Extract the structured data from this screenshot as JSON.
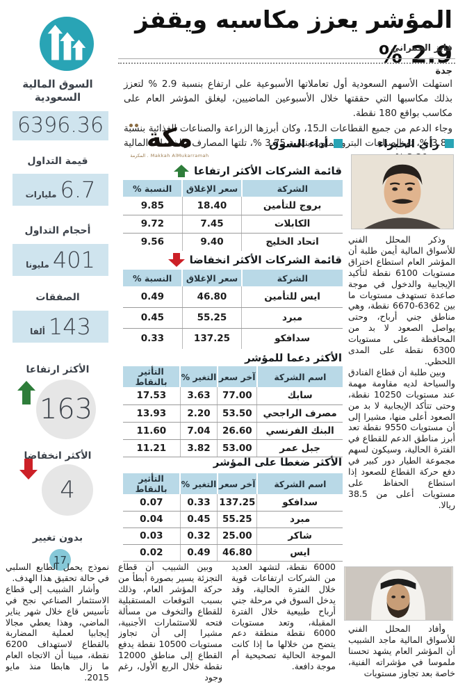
{
  "page": {
    "headline": "المؤشر يعزز مكاسبه ويقفز 2.9 %",
    "byline": "فايز الحمراني",
    "dateline": "جدة",
    "intro_p1": "استهلت الأسهم السعودية أول تعاملاتها الأسبوعية على ارتفاع بنسبة 2.9 % لتعزز بذلك مكاسبها التي حققتها خلال الأسبوعين الماضيين، ليغلق المؤشر العام على مكاسب بواقع 180 نقطة.",
    "intro_p2": "وجاء الدعم من جميع القطاعات الـ15، وكان أبرزها الزراعة والصناعات الغذائية بنسبة 3.88 %، ثم الصناعات البتروكيماوية بنسبة 3.75 %، تلتها المصارف والخدمات المالية بنسبة 3.20 %."
  },
  "logo": {
    "word": "مكة",
    "tagline": "Makkah AlMukarramah . المكرمة"
  },
  "sections": {
    "experts": "رأي الخبراء",
    "market": "أداء السوق"
  },
  "sidebar": {
    "market_label": "السوق المالية السعودية",
    "market_value": "6396.36",
    "stats": [
      {
        "label": "قيمة التداول",
        "value": "6.7",
        "unit": "مليارات"
      },
      {
        "label": "أحجام التداول",
        "value": "401",
        "unit": "مليونا"
      },
      {
        "label": "الصفقات",
        "value": "143",
        "unit": "ألفا"
      }
    ],
    "gainers_label": "الأكثر ارتفاعا",
    "gainers_count": "163",
    "losers_label": "الأكثر انخفاضا",
    "losers_count": "4",
    "unchanged_label": "بدون تغيير",
    "unchanged_count": "17"
  },
  "tables": {
    "top_gainers": {
      "title": "قائمة الشركات الأكثر ارتفاعا",
      "headers": [
        "الشركة",
        "سعر الإغلاق",
        "النسبة %"
      ],
      "rows": [
        [
          "بروج للتأمين",
          "18.40",
          "9.85"
        ],
        [
          "الكابلات",
          "7.45",
          "9.72"
        ],
        [
          "اتحاد الخليج",
          "9.40",
          "9.56"
        ]
      ]
    },
    "top_losers": {
      "title": "قائمة الشركات الأكثر انخفاضا",
      "headers": [
        "الشركة",
        "سعر الإغلاق",
        "النسبة %"
      ],
      "rows": [
        [
          "ايس للتأمين",
          "46.80",
          "0.49"
        ],
        [
          "مبرد",
          "55.25",
          "0.45"
        ],
        [
          "سدافكو",
          "137.25",
          "0.33"
        ]
      ]
    },
    "index_support": {
      "title": "الأكثر دعما للمؤشر",
      "headers": [
        "اسم الشركة",
        "آخر سعر",
        "التغير %",
        "التأثير بالنقاط"
      ],
      "rows": [
        [
          "سابك",
          "77.00",
          "3.63",
          "17.53"
        ],
        [
          "مصرف الراجحي",
          "53.50",
          "2.20",
          "13.93"
        ],
        [
          "البنك الفرنسي",
          "26.60",
          "7.04",
          "11.60"
        ],
        [
          "جبل عمر",
          "53.00",
          "3.82",
          "11.21"
        ]
      ]
    },
    "index_pressure": {
      "title": "الأكثر ضغطا على المؤشر",
      "headers": [
        "اسم الشركة",
        "آخر سعر",
        "التغير %",
        "التأثير بالنقاط"
      ],
      "rows": [
        [
          "سدافكو",
          "137.25",
          "0.33",
          "0.07"
        ],
        [
          "مبرد",
          "55.25",
          "0.45",
          "0.04"
        ],
        [
          "شاكر",
          "25.00",
          "0.32",
          "0.03"
        ],
        [
          "ايس",
          "46.80",
          "0.49",
          "0.02"
        ]
      ]
    }
  },
  "expert1": {
    "p1": "وذكر المحلل الفني للأسواق المالية أيمن طلبة أن المؤشر العام استطاع اختراق مستويات 6100 نقطة لتأكيد الإيجابية والدخول في موجة صاعدة تستهدف مستويات ما بين 6362-6670 نقطة، وهي مناطق جني أرباح، وحتى يواصل الصعود لا بد من المحافظة على مستويات 6300 نقطة على المدى اللحظي.",
    "p2": "وبين طلبة أن قطاع الفنادق والسياحة لديه مقاومة مهمة عند مستويات 10250 نقطة، وحتى تتأكد الإيجابية لا بد من الصعود أعلى منها، مشيرا إلى أن مستويات 9550 نقطة تعد أبرز مناطق الدعم للقطاع في الفترة الحالية، وسيكون لسهم مجموعة الطيار دور كبير في دفع حركة القطاع للصعود إذا استطاع الحفاظ على مستويات أعلى من 38.5 ريالا."
  },
  "expert2": {
    "p1": "وأفاد المحلل الفني للأسواق المالية ماجد الشبيب أن المؤشر العام يشهد تحسنا ملموسا في مؤشراته الفنية، خاصة بعد تجاوز مستويات",
    "col3": "6000 نقطة، لتشهد العديد من الشركات ارتفاعات قوية خلال الفترة الحالية، وقد يدخل السوق في مرحلة جني أرباح طبيعية خلال الفترة المقبلة، وتعد مستويات 6000 نقطة منطقة دعم يتضح من خلالها ما إذا كانت الموجة الحالية تصحيحية أم موجة دافعة.",
    "col2": "وبين الشبيب أن قطاع التجزئة يسير بصورة أبطأ من حركة المؤشر العام، وذلك بسبب التوقعات المستقبلية للقطاع والتخوف من مسألة فتحه للاستثمارات الأجنبية، مشيرا إلى أن تجاوز مستويات 10500 نقطة يدفع القطاع إلى مناطق 12000 نقطة خلال الربع الأول، رغم وجود",
    "col1_cont": "نموذج يحمل الطابع السلبي في حالة تحقيق هذا الهدف.",
    "col1_p2": "وأشار الشبيب إلى قطاع الاستثمار الصناعي نجح في تأسيس قاع خلال شهر يناير الماضي، وهذا يعطي مجالا إيجابيا لعملية المضاربة بالقطاع لاستهداف 6200 نقطة، مبينا أن الاتجاه العام ما زال هابطا منذ مايو 2015."
  },
  "icons": {
    "sidebar_market": "triple-up-arrows-icon",
    "gainers": "up-arrow-icon",
    "losers": "down-arrow-icon",
    "section_bullet": "square-bullet-icon"
  },
  "colors": {
    "teal": "#29a4b5",
    "light_blue_box": "#cfe4ee",
    "table_header": "#b9d9e7",
    "green_arrow": "#2e7d3a",
    "red_arrow": "#cc2027",
    "gray_circle": "#e6e6e6",
    "unchanged_circle": "#86c8d8"
  }
}
